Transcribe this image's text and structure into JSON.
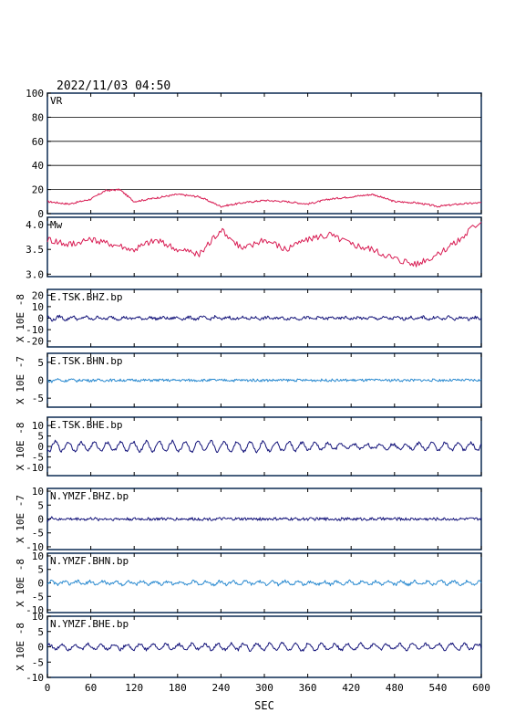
{
  "title": "2022/11/03 04:50",
  "colors": {
    "frame": "#0b2a52",
    "vr": "#d81b52",
    "mw": "#d81b52",
    "dark": "#14147a",
    "light": "#2a8ad0",
    "grid": "#000000"
  },
  "chart_data": [
    {
      "type": "line",
      "name": "VR",
      "label": "VR",
      "ylim": [
        0,
        100
      ],
      "yticks": [
        0,
        20,
        40,
        60,
        80,
        100
      ],
      "grid": true,
      "series_color": "vr",
      "x": [
        0,
        30,
        60,
        80,
        100,
        120,
        150,
        180,
        210,
        240,
        270,
        300,
        330,
        360,
        390,
        420,
        450,
        480,
        510,
        540,
        570,
        600
      ],
      "y": [
        10,
        8,
        12,
        19,
        20,
        10,
        13,
        16,
        14,
        6,
        9,
        11,
        10,
        8,
        12,
        14,
        16,
        10,
        9,
        6,
        8,
        9
      ]
    },
    {
      "type": "line",
      "name": "Mw",
      "label": "Mw",
      "ylim": [
        2.95,
        4.15
      ],
      "yticks": [
        3.0,
        3.5,
        4.0
      ],
      "tick_labels": [
        "3.0",
        "3.5",
        "4.0"
      ],
      "series_color": "mw",
      "x": [
        0,
        30,
        60,
        90,
        120,
        150,
        180,
        210,
        240,
        270,
        300,
        330,
        360,
        390,
        420,
        450,
        480,
        510,
        540,
        570,
        600
      ],
      "y": [
        3.7,
        3.6,
        3.7,
        3.6,
        3.5,
        3.7,
        3.5,
        3.4,
        3.9,
        3.5,
        3.7,
        3.5,
        3.7,
        3.8,
        3.6,
        3.5,
        3.3,
        3.2,
        3.4,
        3.7,
        4.1
      ]
    },
    {
      "type": "line",
      "name": "E.TSK.BHZ.bp",
      "label": "E.TSK.BHZ.bp",
      "unit": "X 10E -8",
      "ylim": [
        -25,
        25
      ],
      "yticks": [
        -20,
        -10,
        0,
        10,
        20
      ],
      "series_color": "dark",
      "x": [
        0,
        60,
        120,
        180,
        240,
        300,
        360,
        420,
        480,
        540,
        600
      ],
      "y": [
        3,
        2,
        1,
        1,
        2,
        1,
        1,
        1,
        1,
        2,
        1
      ]
    },
    {
      "type": "line",
      "name": "E.TSK.BHN.bp",
      "label": "E.TSK.BHN.bp",
      "unit": "X 10E -7",
      "ylim": [
        -7.5,
        7.5
      ],
      "yticks": [
        -5,
        0,
        5
      ],
      "series_color": "light",
      "x": [
        0,
        60,
        120,
        180,
        240,
        300,
        360,
        420,
        480,
        540,
        600
      ],
      "y": [
        0.6,
        0.1,
        0,
        0,
        0.1,
        0,
        0,
        0,
        0.1,
        0,
        0
      ]
    },
    {
      "type": "line",
      "name": "E.TSK.BHE.bp",
      "label": "E.TSK.BHE.bp",
      "unit": "X 10E -8",
      "ylim": [
        -14,
        14
      ],
      "yticks": [
        -10,
        -5,
        0,
        5,
        10
      ],
      "series_color": "dark",
      "x": [
        0,
        60,
        120,
        180,
        240,
        300,
        360,
        420,
        480,
        540,
        600
      ],
      "y": [
        4,
        3,
        4,
        4,
        4,
        4,
        3,
        2,
        2,
        3,
        3
      ]
    },
    {
      "type": "line",
      "name": "N.YMZF.BHZ.bp",
      "label": "N.YMZF.BHZ.bp",
      "unit": "X 10E -7",
      "ylim": [
        -11,
        11
      ],
      "yticks": [
        -10,
        -5,
        0,
        5,
        10
      ],
      "series_color": "dark",
      "x": [
        0,
        30,
        60,
        90,
        120,
        180,
        240,
        300,
        360,
        420,
        480,
        540,
        600
      ],
      "y": [
        1,
        0,
        0.3,
        0,
        0,
        0,
        0,
        0,
        0,
        0,
        0,
        0,
        0
      ]
    },
    {
      "type": "line",
      "name": "N.YMZF.BHN.bp",
      "label": "N.YMZF.BHN.bp",
      "unit": "X 10E -8",
      "ylim": [
        -11,
        11
      ],
      "yticks": [
        -10,
        -5,
        0,
        5,
        10
      ],
      "series_color": "light",
      "x": [
        0,
        60,
        120,
        180,
        240,
        300,
        360,
        420,
        480,
        540,
        600
      ],
      "y": [
        1,
        1,
        1,
        1,
        1,
        1,
        1,
        1,
        1,
        1,
        1
      ]
    },
    {
      "type": "line",
      "name": "N.YMZF.BHE.bp",
      "label": "N.YMZF.BHE.bp",
      "unit": "X 10E -8",
      "ylim": [
        -10,
        10
      ],
      "yticks": [
        -10,
        -5,
        0,
        5,
        10
      ],
      "series_color": "dark",
      "x": [
        0,
        60,
        120,
        180,
        240,
        300,
        360,
        420,
        480,
        540,
        600
      ],
      "y": [
        1.5,
        1.5,
        1.5,
        1.5,
        1.5,
        2,
        2,
        1.5,
        1.5,
        1.5,
        1.5
      ]
    }
  ],
  "xaxis": {
    "label": "SEC",
    "range": [
      0,
      600
    ],
    "ticks": [
      0,
      60,
      120,
      180,
      240,
      300,
      360,
      420,
      480,
      540,
      600
    ]
  }
}
